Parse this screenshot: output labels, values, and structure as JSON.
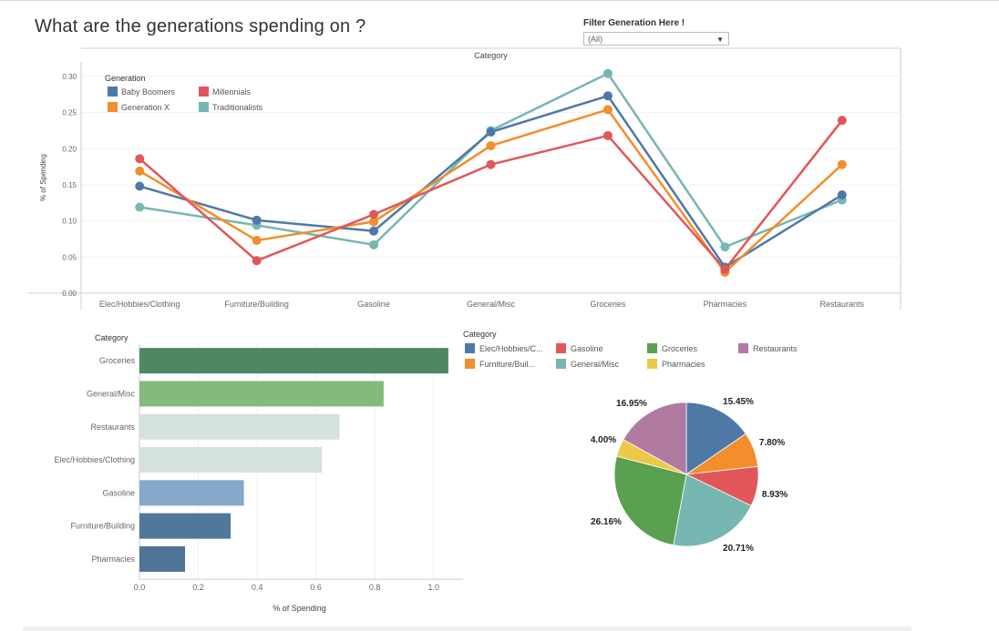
{
  "page": {
    "title": "What are the generations spending on ?",
    "filter_label": "Filter Generation Here !",
    "filter_value": "(All)"
  },
  "chart_data": [
    {
      "type": "line",
      "title": "Category",
      "xlabel": "",
      "ylabel": "% of Spending",
      "categories": [
        "Elec/Hobbies/Clothing",
        "Furniture/Building",
        "Gasoline",
        "General/Misc",
        "Groceries",
        "Pharmacies",
        "Restaurants"
      ],
      "ylim": [
        0,
        0.32
      ],
      "yticks": [
        0.0,
        0.05,
        0.1,
        0.15,
        0.2,
        0.25,
        0.3
      ],
      "ytick_labels": [
        "0.00",
        "0.05",
        "0.10",
        "0.15",
        "0.20",
        "0.25",
        "0.30"
      ],
      "legend_title": "Generation",
      "series": [
        {
          "name": "Traditionalists",
          "color": "#76b7b2",
          "values": [
            0.119,
            0.094,
            0.067,
            0.225,
            0.304,
            0.064,
            0.129
          ]
        },
        {
          "name": "Baby Boomers",
          "color": "#4e79a7",
          "values": [
            0.148,
            0.101,
            0.086,
            0.223,
            0.273,
            0.036,
            0.136
          ]
        },
        {
          "name": "Generation X",
          "color": "#f28e2b",
          "values": [
            0.169,
            0.073,
            0.099,
            0.204,
            0.254,
            0.029,
            0.178
          ]
        },
        {
          "name": "Millennials",
          "color": "#e15759",
          "values": [
            0.186,
            0.045,
            0.109,
            0.178,
            0.218,
            0.033,
            0.239
          ]
        }
      ],
      "legend_order": [
        "Baby Boomers",
        "Millennials",
        "Generation X",
        "Traditionalists"
      ]
    },
    {
      "type": "bar",
      "orientation": "horizontal",
      "axis_title": "Category",
      "xlabel": "% of Spending",
      "xlim": [
        0,
        1.1
      ],
      "xticks": [
        0.0,
        0.2,
        0.4,
        0.6,
        0.8,
        1.0
      ],
      "xtick_labels": [
        "0.0",
        "0.2",
        "0.4",
        "0.6",
        "0.8",
        "1.0"
      ],
      "categories": [
        "Groceries",
        "General/Misc",
        "Restaurants",
        "Elec/Hobbies/Clothing",
        "Gasoline",
        "Furniture/Building",
        "Pharmacies"
      ],
      "values": [
        1.05,
        0.83,
        0.68,
        0.62,
        0.355,
        0.31,
        0.155
      ],
      "colors": [
        "#4e8762",
        "#84ba7c",
        "#d5e1dc",
        "#d5e1dc",
        "#86a8cb",
        "#52779c",
        "#4f7396"
      ]
    },
    {
      "type": "pie",
      "legend_title": "Category",
      "legend": [
        {
          "label": "Elec/Hobbies/C...",
          "color": "#4e79a7"
        },
        {
          "label": "Furniture/Buil...",
          "color": "#f28e2b"
        },
        {
          "label": "Gasoline",
          "color": "#e15759"
        },
        {
          "label": "General/Misc",
          "color": "#76b7b2"
        },
        {
          "label": "Groceries",
          "color": "#59a14f"
        },
        {
          "label": "Pharmacies",
          "color": "#edc948"
        },
        {
          "label": "Restaurants",
          "color": "#b07aa1"
        }
      ],
      "slices": [
        {
          "name": "Elec/Hobbies/Clothing",
          "value": 15.45,
          "label": "15.45%",
          "color": "#4e79a7"
        },
        {
          "name": "Furniture/Building",
          "value": 7.8,
          "label": "7.80%",
          "color": "#f28e2b"
        },
        {
          "name": "Gasoline",
          "value": 8.93,
          "label": "8.93%",
          "color": "#e15759"
        },
        {
          "name": "General/Misc",
          "value": 20.71,
          "label": "20.71%",
          "color": "#76b7b2"
        },
        {
          "name": "Groceries",
          "value": 26.16,
          "label": "26.16%",
          "color": "#59a14f"
        },
        {
          "name": "Pharmacies",
          "value": 4.0,
          "label": "4.00%",
          "color": "#edc948"
        },
        {
          "name": "Restaurants",
          "value": 16.95,
          "label": "16.95%",
          "color": "#b07aa1"
        }
      ]
    }
  ]
}
